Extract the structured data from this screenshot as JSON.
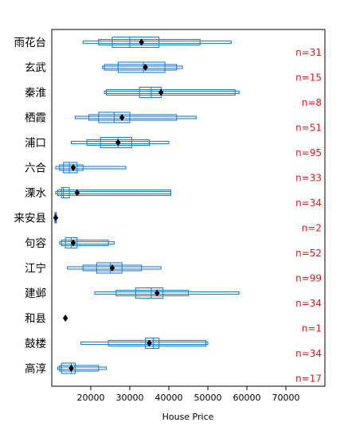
{
  "colors": {
    "box": "#1f7fd6",
    "mean": "#000000",
    "count": "#d42020",
    "frame": "#000000"
  },
  "chart_data": {
    "type": "letter-value boxplot (horizontal)",
    "xlabel": "House Price",
    "xlim": [
      10000,
      80000
    ],
    "ticks": [
      20000,
      30000,
      40000,
      50000,
      60000,
      70000
    ],
    "tick_labels": [
      "20000",
      "30000",
      "40000",
      "50000",
      "60000",
      "70000"
    ],
    "categories": [
      {
        "name": "雨花台",
        "n": 31,
        "n_label": "n=31",
        "mean": 33000,
        "median": 30000,
        "levels": [
          [
            25500,
            37500
          ],
          [
            22000,
            48000
          ],
          [
            18000,
            56000
          ]
        ]
      },
      {
        "name": "玄武",
        "n": 15,
        "n_label": "n=15",
        "mean": 34000,
        "median": 33500,
        "levels": [
          [
            27000,
            39000
          ],
          [
            23500,
            42000
          ],
          [
            23000,
            43500
          ]
        ]
      },
      {
        "name": "秦淮",
        "n": 8,
        "n_label": "n=8",
        "mean": 38000,
        "median": 35500,
        "levels": [
          [
            32500,
            38000
          ],
          [
            24000,
            57000
          ],
          [
            23500,
            58000
          ]
        ]
      },
      {
        "name": "栖霞",
        "n": 51,
        "n_label": "n=51",
        "mean": 28000,
        "median": 26000,
        "levels": [
          [
            22000,
            30000
          ],
          [
            19500,
            42000
          ],
          [
            16000,
            47000
          ]
        ]
      },
      {
        "name": "浦口",
        "n": 95,
        "n_label": "n=95",
        "mean": 27000,
        "median": 27000,
        "levels": [
          [
            22500,
            30500
          ],
          [
            19000,
            35000
          ],
          [
            15000,
            40000
          ]
        ]
      },
      {
        "name": "六合",
        "n": 33,
        "n_label": "n=33",
        "mean": 15500,
        "median": 14500,
        "levels": [
          [
            13000,
            16500
          ],
          [
            12000,
            18000
          ],
          [
            11000,
            29000
          ]
        ]
      },
      {
        "name": "溧水",
        "n": 34,
        "n_label": "n=34",
        "mean": 16500,
        "median": 13000,
        "levels": [
          [
            12500,
            14500
          ],
          [
            11500,
            40500
          ],
          [
            11000,
            40500
          ]
        ]
      },
      {
        "name": "来安县",
        "n": 2,
        "n_label": "n=2",
        "mean": 11000,
        "median": 11000,
        "levels": [
          [
            10800,
            11200
          ]
        ]
      },
      {
        "name": "句容",
        "n": 52,
        "n_label": "n=52",
        "mean": 15500,
        "median": 15000,
        "levels": [
          [
            13500,
            16500
          ],
          [
            12500,
            24500
          ],
          [
            12000,
            26000
          ]
        ]
      },
      {
        "name": "江宁",
        "n": 99,
        "n_label": "n=99",
        "mean": 25500,
        "median": 25000,
        "levels": [
          [
            21500,
            28000
          ],
          [
            18000,
            33000
          ],
          [
            14000,
            38000
          ]
        ]
      },
      {
        "name": "建邺",
        "n": 34,
        "n_label": "n=34",
        "mean": 37000,
        "median": 35500,
        "levels": [
          [
            31500,
            38500
          ],
          [
            26500,
            45000
          ],
          [
            21000,
            58000
          ]
        ]
      },
      {
        "name": "和县",
        "n": 1,
        "n_label": "n=1",
        "mean": 13500,
        "median": 13500,
        "levels": []
      },
      {
        "name": "鼓楼",
        "n": 34,
        "n_label": "n=34",
        "mean": 35000,
        "median": 36000,
        "levels": [
          [
            34000,
            37500
          ],
          [
            24500,
            49500
          ],
          [
            17500,
            50000
          ]
        ]
      },
      {
        "name": "高淳",
        "n": 17,
        "n_label": "n=17",
        "mean": 15000,
        "median": 15000,
        "levels": [
          [
            12500,
            16000
          ],
          [
            12000,
            22000
          ],
          [
            11500,
            24000
          ]
        ]
      }
    ]
  }
}
